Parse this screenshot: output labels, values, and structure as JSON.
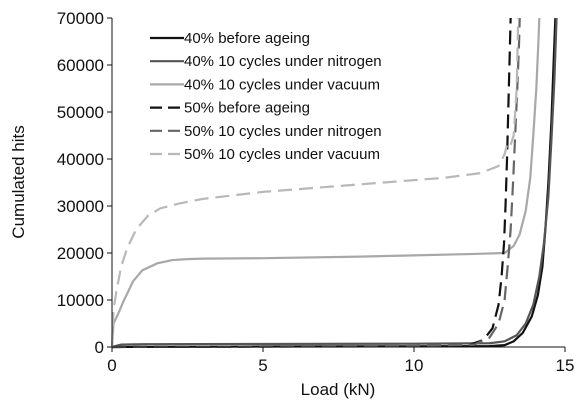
{
  "chart_data": {
    "type": "line",
    "title": "",
    "xlabel": "Load (kN)",
    "ylabel": "Cumulated hits",
    "xlim": [
      0,
      15
    ],
    "ylim": [
      0,
      70000
    ],
    "x_ticks": [
      0,
      5,
      10,
      15
    ],
    "x_tick_labels": [
      "0",
      "5",
      "10",
      "15"
    ],
    "y_ticks": [
      0,
      10000,
      20000,
      30000,
      40000,
      50000,
      60000,
      70000
    ],
    "y_tick_labels": [
      "0",
      "10000",
      "20000",
      "30000",
      "40000",
      "50000",
      "60000",
      "70000"
    ],
    "grid": false,
    "legend_position": "top-left",
    "series": [
      {
        "name": "40% before ageing",
        "color": "#111111",
        "dash": "solid",
        "points": [
          [
            0,
            0
          ],
          [
            5,
            100
          ],
          [
            10,
            150
          ],
          [
            12.5,
            200
          ],
          [
            13.0,
            400
          ],
          [
            13.3,
            1200
          ],
          [
            13.6,
            3000
          ],
          [
            13.9,
            6500
          ],
          [
            14.1,
            11000
          ],
          [
            14.25,
            17000
          ],
          [
            14.35,
            25000
          ],
          [
            14.45,
            35000
          ],
          [
            14.55,
            48000
          ],
          [
            14.62,
            60000
          ],
          [
            14.68,
            70000
          ]
        ]
      },
      {
        "name": "40% 10 cycles under nitrogen",
        "color": "#555555",
        "dash": "solid",
        "points": [
          [
            0,
            0
          ],
          [
            0.3,
            500
          ],
          [
            1,
            600
          ],
          [
            5,
            650
          ],
          [
            10,
            700
          ],
          [
            12.5,
            800
          ],
          [
            13.0,
            1200
          ],
          [
            13.4,
            2500
          ],
          [
            13.7,
            5000
          ],
          [
            13.95,
            9000
          ],
          [
            14.15,
            15000
          ],
          [
            14.3,
            22000
          ],
          [
            14.45,
            32000
          ],
          [
            14.55,
            44000
          ],
          [
            14.65,
            57000
          ],
          [
            14.72,
            70000
          ]
        ]
      },
      {
        "name": "40% 10 cycles under vacuum",
        "color": "#a8a8a8",
        "dash": "solid",
        "points": [
          [
            0,
            0
          ],
          [
            0.05,
            5000
          ],
          [
            0.2,
            7000
          ],
          [
            0.4,
            10000
          ],
          [
            0.7,
            14000
          ],
          [
            1.0,
            16300
          ],
          [
            1.5,
            17800
          ],
          [
            2.0,
            18500
          ],
          [
            2.5,
            18700
          ],
          [
            3,
            18800
          ],
          [
            5,
            18900
          ],
          [
            8,
            19200
          ],
          [
            10,
            19500
          ],
          [
            12,
            19800
          ],
          [
            13.0,
            20000
          ],
          [
            13.3,
            21500
          ],
          [
            13.5,
            24000
          ],
          [
            13.7,
            29000
          ],
          [
            13.85,
            36000
          ],
          [
            13.95,
            45000
          ],
          [
            14.05,
            55000
          ],
          [
            14.12,
            65000
          ],
          [
            14.15,
            70000
          ]
        ]
      },
      {
        "name": "50% before ageing",
        "color": "#111111",
        "dash": "dashed",
        "points": [
          [
            0,
            0
          ],
          [
            5,
            100
          ],
          [
            10,
            200
          ],
          [
            11.8,
            400
          ],
          [
            12.3,
            1500
          ],
          [
            12.6,
            4000
          ],
          [
            12.8,
            9000
          ],
          [
            12.9,
            15000
          ],
          [
            12.98,
            22000
          ],
          [
            13.03,
            30000
          ],
          [
            13.08,
            40000
          ],
          [
            13.12,
            50000
          ],
          [
            13.16,
            60000
          ],
          [
            13.2,
            70000
          ]
        ]
      },
      {
        "name": "50% 10 cycles under nitrogen",
        "color": "#666666",
        "dash": "dashed",
        "points": [
          [
            0,
            0
          ],
          [
            5,
            150
          ],
          [
            10,
            250
          ],
          [
            12.0,
            500
          ],
          [
            12.5,
            2000
          ],
          [
            12.8,
            5000
          ],
          [
            13.0,
            10000
          ],
          [
            13.1,
            17000
          ],
          [
            13.2,
            25000
          ],
          [
            13.28,
            35000
          ],
          [
            13.35,
            45000
          ],
          [
            13.42,
            55000
          ],
          [
            13.48,
            65000
          ],
          [
            13.5,
            70000
          ]
        ]
      },
      {
        "name": "50% 10 cycles under vacuum",
        "color": "#b8b8b8",
        "dash": "dashed",
        "points": [
          [
            0,
            0
          ],
          [
            0.05,
            8000
          ],
          [
            0.15,
            12000
          ],
          [
            0.3,
            17000
          ],
          [
            0.5,
            21000
          ],
          [
            0.8,
            25000
          ],
          [
            1.2,
            28000
          ],
          [
            1.6,
            29500
          ],
          [
            2.2,
            30500
          ],
          [
            3,
            31500
          ],
          [
            5,
            33000
          ],
          [
            7,
            34000
          ],
          [
            9,
            35000
          ],
          [
            11,
            36000
          ],
          [
            12.2,
            37000
          ],
          [
            12.8,
            38500
          ],
          [
            13.0,
            41000
          ],
          [
            13.1,
            43500
          ],
          [
            13.2,
            43000
          ],
          [
            13.3,
            45000
          ],
          [
            13.4,
            55000
          ],
          [
            13.45,
            70000
          ]
        ]
      }
    ]
  }
}
